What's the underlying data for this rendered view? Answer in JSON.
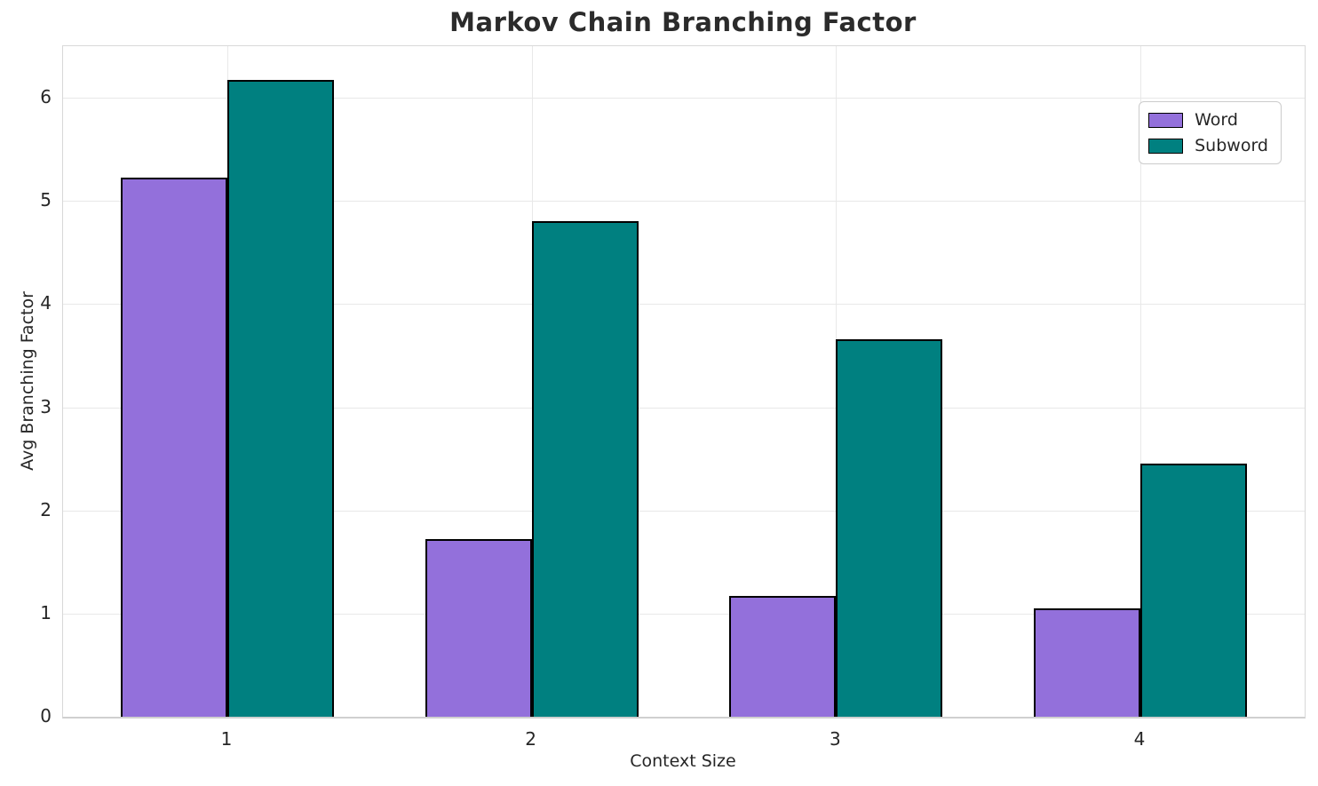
{
  "chart_data": {
    "type": "bar",
    "title": "Markov Chain Branching Factor",
    "xlabel": "Context Size",
    "ylabel": "Avg Branching Factor",
    "categories": [
      "1",
      "2",
      "3",
      "4"
    ],
    "series": [
      {
        "name": "Word",
        "color": "#9370DB",
        "values": [
          5.23,
          1.72,
          1.17,
          1.05
        ]
      },
      {
        "name": "Subword",
        "color": "#008080",
        "values": [
          6.17,
          4.8,
          3.66,
          2.45
        ]
      }
    ],
    "xlim": [
      -0.54,
      3.54
    ],
    "ylim": [
      0,
      6.5
    ],
    "yticks": [
      0,
      1,
      2,
      3,
      4,
      5,
      6
    ],
    "bar_width": 0.35,
    "bar_edge_color": "#000000",
    "grid": "horizontal-and-vertical",
    "legend_position": "upper right",
    "style": {
      "background": "#ffffff",
      "grid_color": "#e8e8e8",
      "spine_color": "#d8d8d8",
      "text_color": "#262626"
    }
  }
}
